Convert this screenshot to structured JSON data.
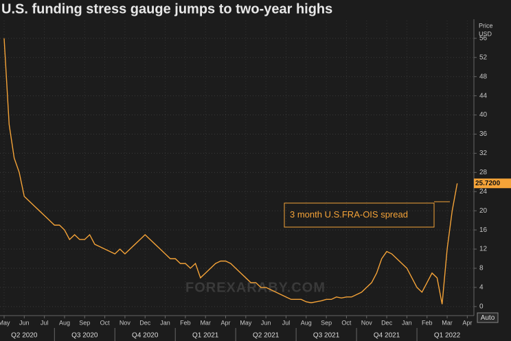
{
  "chart_data": {
    "type": "line",
    "title": "U.S. funding stress gauge jumps to two-year highs",
    "y_axis_title": [
      "Price",
      "USD"
    ],
    "categories": [
      "May",
      null,
      null,
      null,
      "Jun",
      null,
      null,
      null,
      "Jul",
      null,
      null,
      null,
      "Aug",
      null,
      null,
      null,
      "Sep",
      null,
      null,
      null,
      "Oct",
      null,
      null,
      null,
      "Nov",
      null,
      null,
      null,
      "Dec",
      null,
      null,
      null,
      "Jan",
      null,
      null,
      null,
      "Feb",
      null,
      null,
      null,
      "Mar",
      null,
      null,
      null,
      "Apr",
      null,
      null,
      null,
      "May",
      null,
      null,
      null,
      "Jun",
      null,
      null,
      null,
      "Jul",
      null,
      null,
      null,
      "Aug",
      null,
      null,
      null,
      "Sep",
      null,
      null,
      null,
      "Oct",
      null,
      null,
      null,
      "Nov",
      null,
      null,
      null,
      "Dec",
      null,
      null,
      null,
      "Jan",
      null,
      null,
      null,
      "Feb",
      null,
      null,
      null,
      "Mar",
      null,
      null,
      null,
      "Apr",
      null,
      null,
      null
    ],
    "quarters": [
      "Q2 2020",
      "Q3 2020",
      "Q4 2020",
      "Q1 2021",
      "Q2 2021",
      "Q3 2021",
      "Q4 2021",
      "Q1 2022"
    ],
    "series": [
      {
        "name": "3 month U.S.FRA-OIS spread",
        "color": "#f5a338",
        "values": [
          56,
          38,
          31,
          28,
          23,
          22,
          21,
          20,
          19,
          18,
          17,
          17,
          16,
          14,
          15,
          14,
          14,
          15,
          13,
          12.5,
          12,
          11.5,
          11,
          12,
          11,
          12,
          13,
          14,
          15,
          14,
          13,
          12,
          11,
          10,
          10,
          9,
          9,
          8,
          9,
          6,
          7,
          8,
          9,
          9.5,
          9.5,
          9,
          8,
          7,
          6,
          5,
          5,
          4,
          4,
          3.5,
          3,
          2.5,
          2,
          1.5,
          1.5,
          1.5,
          1,
          0.8,
          1,
          1.2,
          1.5,
          1.5,
          2,
          1.8,
          2,
          2,
          2.5,
          3,
          4,
          5,
          7,
          10,
          11.5,
          11,
          10,
          9,
          8,
          6,
          4,
          3,
          5,
          7,
          6,
          0.5,
          12,
          20,
          25.72,
          null,
          null,
          null,
          null,
          null
        ]
      }
    ],
    "last_label": {
      "value": 25.72,
      "label": "25.7200"
    },
    "ylim": [
      -1.6,
      59.7
    ],
    "yticks": [
      0,
      4,
      8,
      12,
      16,
      20,
      24,
      28,
      32,
      36,
      40,
      44,
      48,
      52,
      56
    ],
    "grid": true,
    "watermark": "FOREXARABY.COM",
    "button": "Auto"
  }
}
